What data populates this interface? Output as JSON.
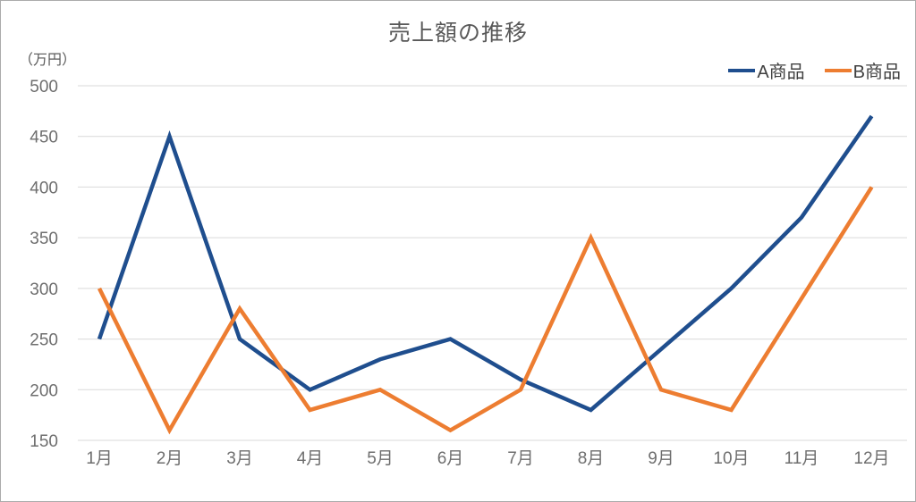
{
  "chart_data": {
    "type": "line",
    "title": "売上額の推移",
    "ylabel": "（万円）",
    "xlabel": "",
    "categories": [
      "1月",
      "2月",
      "3月",
      "4月",
      "5月",
      "6月",
      "7月",
      "8月",
      "9月",
      "10月",
      "11月",
      "12月"
    ],
    "series": [
      {
        "name": "A商品",
        "color": "#1F4E8E",
        "values": [
          250,
          450,
          250,
          200,
          230,
          250,
          210,
          180,
          240,
          300,
          370,
          470
        ]
      },
      {
        "name": "B商品",
        "color": "#ED7D31",
        "values": [
          300,
          160,
          280,
          180,
          200,
          160,
          200,
          350,
          200,
          180,
          290,
          400
        ]
      }
    ],
    "ylim": [
      150,
      500
    ],
    "ytick_step": 50,
    "grid": "horizontal",
    "legend_position": "top-right",
    "title_color": "#595959",
    "axis_text_color": "#6E6E6E",
    "grid_color": "#D9D9D9"
  }
}
